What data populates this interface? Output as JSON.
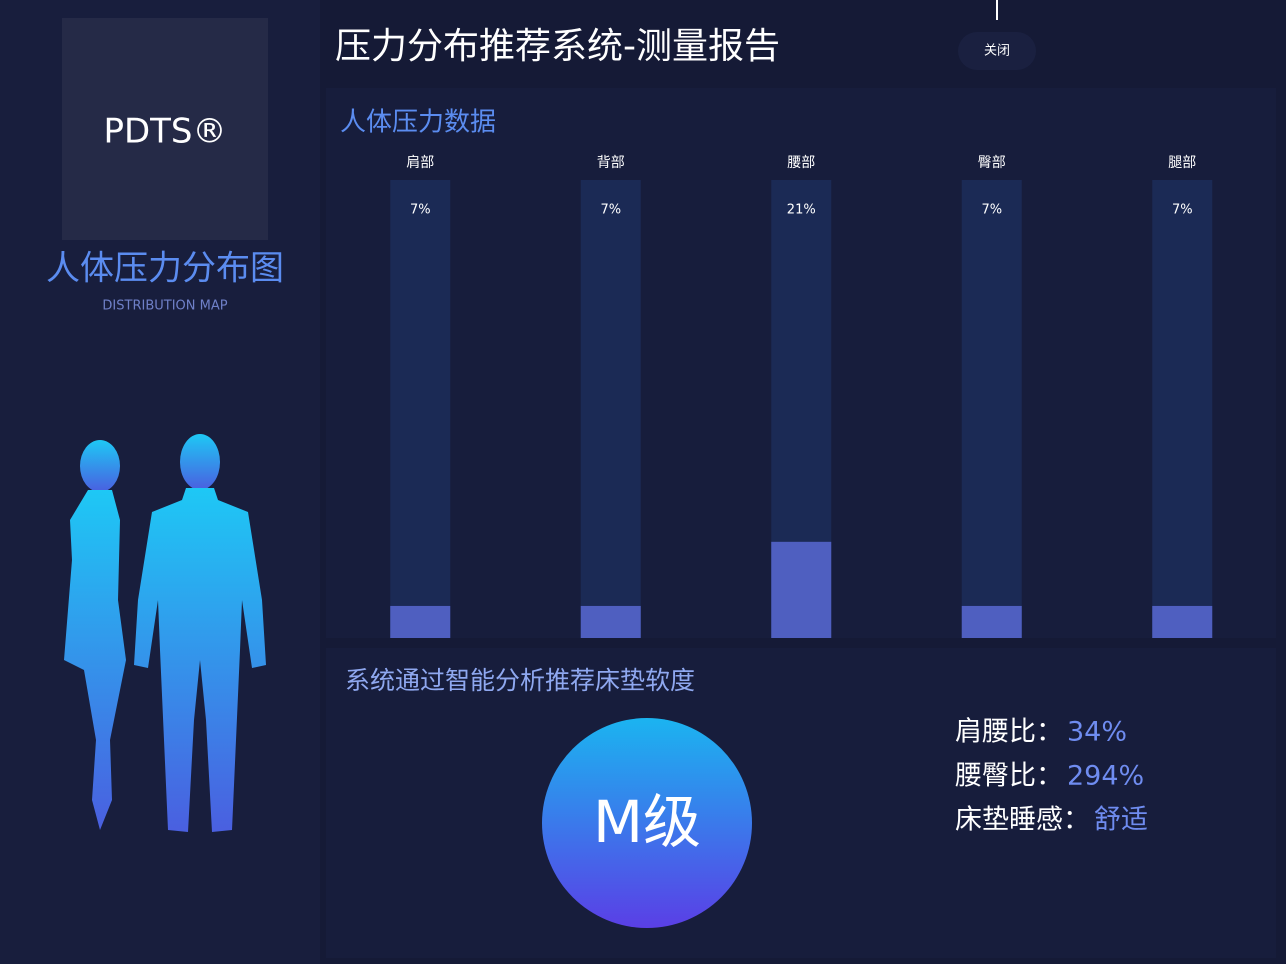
{
  "header": {
    "title": "压力分布推荐系统-测量报告",
    "close": "关闭"
  },
  "sidebar": {
    "logo": "PDTS®",
    "title": "人体压力分布图",
    "subtitle": "DISTRIBUTION MAP"
  },
  "chart_data": {
    "type": "bar",
    "title": "人体压力数据",
    "categories": [
      "肩部",
      "背部",
      "腰部",
      "臀部",
      "腿部"
    ],
    "values": [
      7,
      7,
      21,
      7,
      7
    ],
    "value_labels": [
      "7%",
      "7%",
      "21%",
      "7%",
      "7%"
    ],
    "color": "#4f5fc0",
    "track_color": "#1b2a55",
    "ylim": [
      0,
      100
    ]
  },
  "recommendation": {
    "title": "系统通过智能分析推荐床垫软度",
    "grade": "M级",
    "stats": [
      {
        "label": "肩腰比：",
        "value": "34%"
      },
      {
        "label": "腰臀比：",
        "value": "294%"
      },
      {
        "label": "床垫睡感：",
        "value": "舒适"
      }
    ]
  }
}
